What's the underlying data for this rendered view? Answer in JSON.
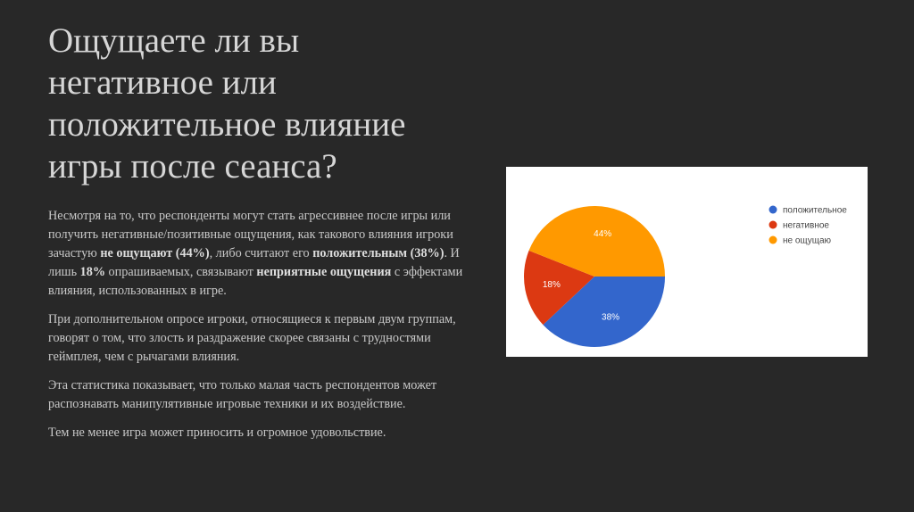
{
  "title_lines": [
    "Ощущаете ли вы",
    "негативное или",
    "положительное влияние",
    "игры после сеанса?"
  ],
  "p1": {
    "t1": "Несмотря на то, что респонденты могут стать агрессивнее после игры или получить негативные/позитивные ощущения, как такового влияния игроки зачастую ",
    "b1": "не ощущают (44%)",
    "t2": ", либо считают его ",
    "b2": "положительным (38%)",
    "t3": ". И лишь ",
    "b3": "18%",
    "t4": " опрашиваемых, связывают ",
    "b4": "неприятные ощущения",
    "t5": " с эффектами влияния, использованных в игре."
  },
  "p2": "При дополнительном опросе игроки, относящиеся к первым двум группам, говорят о том, что злость и раздражение скорее связаны с трудностями геймплея, чем с рычагами влияния.",
  "p3": "Эта статистика показывает, что только малая часть респондентов может распознавать манипулятивные игровые техники и их воздействие.",
  "p4": "Тем не менее игра может приносить и огромное удовольствие.",
  "chart_data": {
    "type": "pie",
    "categories": [
      "положительное",
      "негативное",
      "не ощущаю"
    ],
    "values": [
      38,
      18,
      44
    ],
    "labels": [
      "38%",
      "18%",
      "44%"
    ],
    "colors": [
      "#3366cc",
      "#dc3912",
      "#ff9900"
    ],
    "legend_position": "right",
    "start_angle_deg": 90,
    "direction": "clockwise"
  }
}
